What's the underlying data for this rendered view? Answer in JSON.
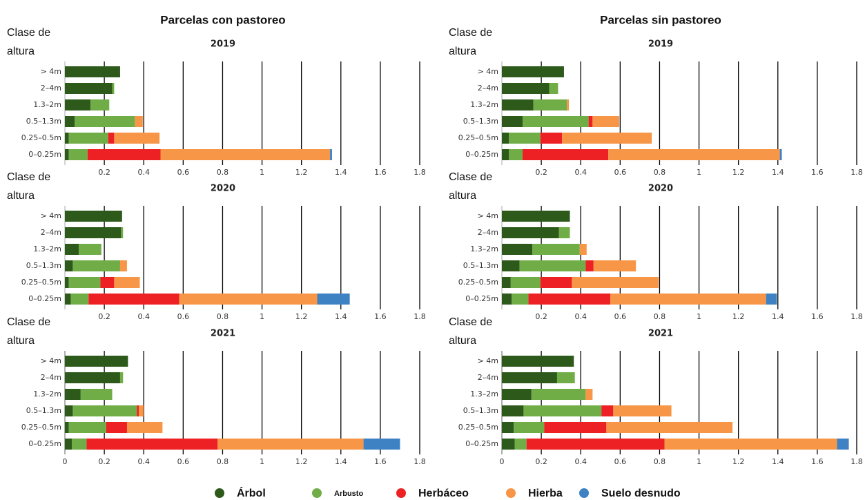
{
  "chart_data": [
    {
      "type": "barh-stacked",
      "column_title": "Parcelas con pastoreo",
      "title": "2019",
      "y_label": "Clase de altura",
      "categories": [
        "> 4m",
        "2–4m",
        "1.3–2m",
        "0.5–1.3m",
        "0.25–0.5m",
        "0–0.25m"
      ],
      "series": [
        {
          "name": "Árbol",
          "color": "#2d5a1b",
          "values": [
            0.28,
            0.24,
            0.13,
            0.05,
            0.02,
            0.02
          ]
        },
        {
          "name": "Arbusto",
          "color": "#70ad47",
          "values": [
            0,
            0.01,
            0.095,
            0.305,
            0.2,
            0.095
          ]
        },
        {
          "name": "Herbáceo",
          "color": "#ed2024",
          "values": [
            0,
            0,
            0,
            0,
            0.03,
            0.37
          ]
        },
        {
          "name": "Hierba",
          "color": "#f79646",
          "values": [
            0,
            0,
            0,
            0.04,
            0.23,
            0.86
          ]
        },
        {
          "name": "Suelo desnudo",
          "color": "#3e82c4",
          "values": [
            0,
            0,
            0,
            0,
            0,
            0.01
          ]
        }
      ],
      "xlim": [
        0,
        1.8
      ],
      "xticks": [
        0.2,
        0.4,
        0.6,
        0.8,
        1,
        1.2,
        1.4,
        1.6,
        1.8
      ],
      "grid": true
    },
    {
      "type": "barh-stacked",
      "column_title": "Parcelas sin pastoreo",
      "title": "2019",
      "y_label": "Clase de altura",
      "categories": [
        "> 4m",
        "2–4m",
        "1.3–2m",
        "0.5–1.3m",
        "0.25–0.5m",
        "0–0.25m"
      ],
      "series": [
        {
          "name": "Árbol",
          "color": "#2d5a1b",
          "values": [
            0.315,
            0.24,
            0.16,
            0.105,
            0.035,
            0.035
          ]
        },
        {
          "name": "Arbusto",
          "color": "#70ad47",
          "values": [
            0,
            0.045,
            0.17,
            0.335,
            0.16,
            0.07
          ]
        },
        {
          "name": "Herbáceo",
          "color": "#ed2024",
          "values": [
            0,
            0,
            0,
            0.02,
            0.11,
            0.435
          ]
        },
        {
          "name": "Hierba",
          "color": "#f79646",
          "values": [
            0,
            0,
            0.01,
            0.135,
            0.455,
            0.87
          ]
        },
        {
          "name": "Suelo desnudo",
          "color": "#3e82c4",
          "values": [
            0,
            0,
            0,
            0,
            0,
            0.01
          ]
        }
      ],
      "xlim": [
        0,
        1.8
      ],
      "xticks": [
        0.2,
        0.4,
        0.6,
        0.8,
        1,
        1.2,
        1.4,
        1.6,
        1.8
      ],
      "grid": true
    },
    {
      "type": "barh-stacked",
      "title": "2020",
      "y_label": "Clase de altura",
      "categories": [
        "> 4m",
        "2–4m",
        "1.3–2m",
        "0.5–1.3m",
        "0.25–0.5m",
        "0–0.25m"
      ],
      "series": [
        {
          "name": "Árbol",
          "color": "#2d5a1b",
          "values": [
            0.29,
            0.285,
            0.07,
            0.04,
            0.02,
            0.03
          ]
        },
        {
          "name": "Arbusto",
          "color": "#70ad47",
          "values": [
            0,
            0.01,
            0.115,
            0.24,
            0.16,
            0.09
          ]
        },
        {
          "name": "Herbáceo",
          "color": "#ed2024",
          "values": [
            0,
            0,
            0,
            0,
            0.07,
            0.46
          ]
        },
        {
          "name": "Hierba",
          "color": "#f79646",
          "values": [
            0,
            0,
            0,
            0.035,
            0.13,
            0.7
          ]
        },
        {
          "name": "Suelo desnudo",
          "color": "#3e82c4",
          "values": [
            0,
            0,
            0,
            0,
            0,
            0.165
          ]
        }
      ],
      "xlim": [
        0,
        1.8
      ],
      "xticks": [
        0.2,
        0.4,
        0.6,
        0.8,
        1,
        1.2,
        1.4,
        1.6,
        1.8
      ],
      "grid": true
    },
    {
      "type": "barh-stacked",
      "title": "2020",
      "y_label": "Clase de altura",
      "categories": [
        "> 4m",
        "2–4m",
        "1.3–2m",
        "0.5–1.3m",
        "0.25–0.5m",
        "0–0.25m"
      ],
      "series": [
        {
          "name": "Árbol",
          "color": "#2d5a1b",
          "values": [
            0.345,
            0.29,
            0.155,
            0.09,
            0.045,
            0.05
          ]
        },
        {
          "name": "Arbusto",
          "color": "#70ad47",
          "values": [
            0,
            0.055,
            0.24,
            0.335,
            0.15,
            0.085
          ]
        },
        {
          "name": "Herbáceo",
          "color": "#ed2024",
          "values": [
            0,
            0,
            0,
            0.04,
            0.16,
            0.415
          ]
        },
        {
          "name": "Hierba",
          "color": "#f79646",
          "values": [
            0,
            0,
            0.035,
            0.215,
            0.44,
            0.79
          ]
        },
        {
          "name": "Suelo desnudo",
          "color": "#3e82c4",
          "values": [
            0,
            0,
            0,
            0,
            0,
            0.055
          ]
        }
      ],
      "xlim": [
        0,
        1.8
      ],
      "xticks": [
        0.2,
        0.4,
        0.6,
        0.8,
        1,
        1.2,
        1.4,
        1.6,
        1.8
      ],
      "grid": true
    },
    {
      "type": "barh-stacked",
      "title": "2021",
      "y_label": "Clase de altura",
      "categories": [
        "> 4m",
        "2–4m",
        "1.3–2m",
        "0.5–1.3m",
        "0.25–0.5m",
        "0–0.25m"
      ],
      "series": [
        {
          "name": "Árbol",
          "color": "#2d5a1b",
          "values": [
            0.32,
            0.28,
            0.08,
            0.04,
            0.02,
            0.035
          ]
        },
        {
          "name": "Arbusto",
          "color": "#70ad47",
          "values": [
            0,
            0.015,
            0.16,
            0.325,
            0.19,
            0.075
          ]
        },
        {
          "name": "Herbáceo",
          "color": "#ed2024",
          "values": [
            0,
            0,
            0,
            0.01,
            0.105,
            0.665
          ]
        },
        {
          "name": "Hierba",
          "color": "#f79646",
          "values": [
            0,
            0,
            0,
            0.025,
            0.18,
            0.74
          ]
        },
        {
          "name": "Suelo desnudo",
          "color": "#3e82c4",
          "values": [
            0,
            0,
            0,
            0,
            0,
            0.185
          ]
        }
      ],
      "xlim": [
        0,
        1.8
      ],
      "xticks": [
        0,
        0.2,
        0.4,
        0.6,
        0.8,
        1,
        1.2,
        1.4,
        1.6,
        1.8
      ],
      "grid": true
    },
    {
      "type": "barh-stacked",
      "title": "2021",
      "y_label": "Clase de altura",
      "categories": [
        "> 4m",
        "2–4m",
        "1.3–2m",
        "0.5–1.3m",
        "0.25–0.5m",
        "0–0.25m"
      ],
      "series": [
        {
          "name": "Árbol",
          "color": "#2d5a1b",
          "values": [
            0.365,
            0.28,
            0.15,
            0.11,
            0.06,
            0.065
          ]
        },
        {
          "name": "Arbusto",
          "color": "#70ad47",
          "values": [
            0,
            0.09,
            0.275,
            0.395,
            0.155,
            0.06
          ]
        },
        {
          "name": "Herbáceo",
          "color": "#ed2024",
          "values": [
            0,
            0,
            0,
            0.06,
            0.315,
            0.7
          ]
        },
        {
          "name": "Hierba",
          "color": "#f79646",
          "values": [
            0,
            0,
            0.035,
            0.295,
            0.64,
            0.875
          ]
        },
        {
          "name": "Suelo desnudo",
          "color": "#3e82c4",
          "values": [
            0,
            0,
            0,
            0,
            0,
            0.06
          ]
        }
      ],
      "xlim": [
        0,
        1.8
      ],
      "xticks": [
        0,
        0.2,
        0.4,
        0.6,
        0.8,
        1,
        1.2,
        1.4,
        1.6,
        1.8
      ],
      "grid": true
    }
  ]
}
